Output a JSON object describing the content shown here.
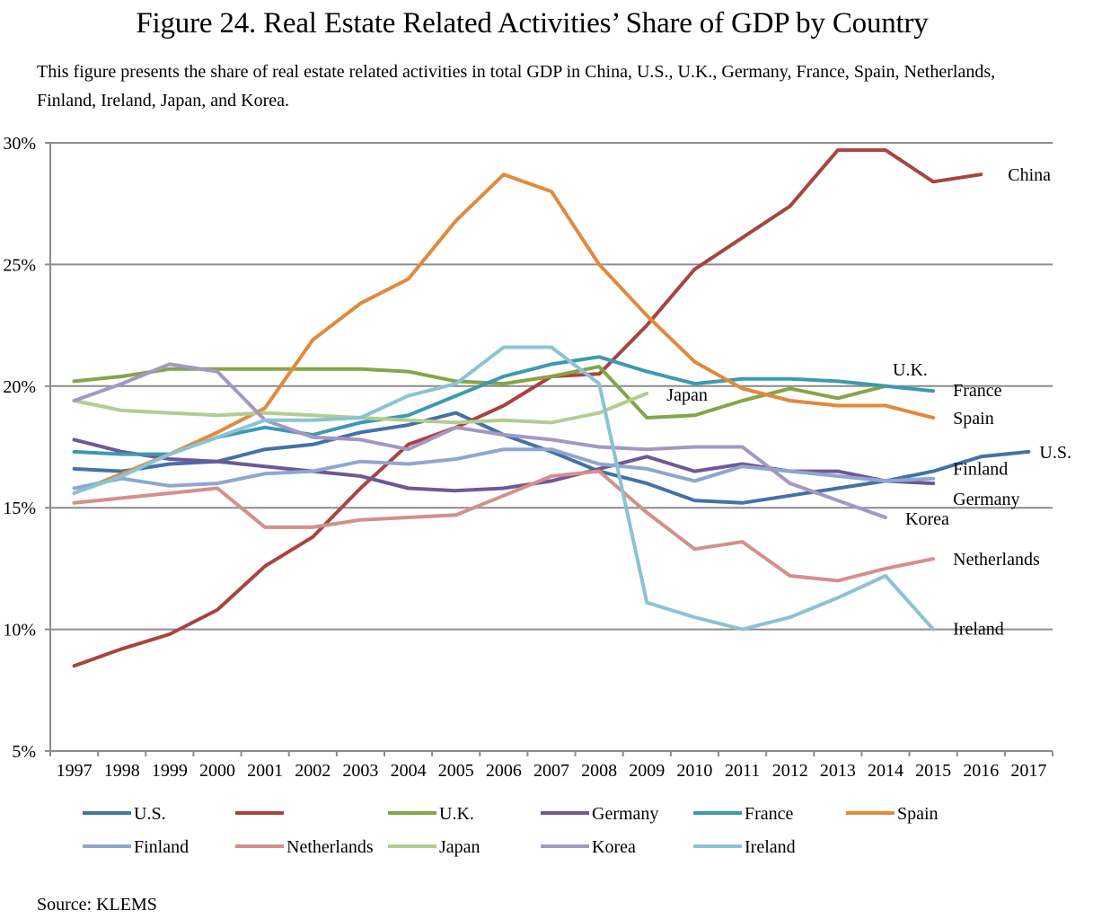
{
  "header": {
    "title": "Figure 24. Real Estate Related Activities’ Share of GDP by Country",
    "caption": "This figure presents the share of real estate related activities in total GDP in China, U.S., U.K., Germany, France, Spain, Netherlands, Finland, Ireland, Japan, and Korea."
  },
  "footer": {
    "source": "Source: KLEMS"
  },
  "chart_data": {
    "type": "line",
    "title": "Figure 24. Real Estate Related Activities’ Share of GDP by Country",
    "xlabel": "",
    "ylabel": "",
    "ylim": [
      5,
      30
    ],
    "y_ticks": [
      5,
      10,
      15,
      20,
      25,
      30
    ],
    "y_tick_labels": [
      "5%",
      "10%",
      "15%",
      "20%",
      "25%",
      "30%"
    ],
    "grid": "horizontal",
    "legend": "bottom",
    "categories": [
      "1997",
      "1998",
      "1999",
      "2000",
      "2001",
      "2002",
      "2003",
      "2004",
      "2005",
      "2006",
      "2007",
      "2008",
      "2009",
      "2010",
      "2011",
      "2012",
      "2013",
      "2014",
      "2015",
      "2016",
      "2017"
    ],
    "series": [
      {
        "name": "U.S.",
        "legend_label": "U.S.",
        "end_label": "U.S.",
        "color": "#4471a8",
        "values": [
          16.6,
          16.5,
          16.8,
          16.9,
          17.4,
          17.6,
          18.1,
          18.4,
          18.9,
          18.0,
          17.3,
          16.5,
          16.0,
          15.3,
          15.2,
          15.5,
          15.8,
          16.1,
          16.5,
          17.1,
          17.3
        ]
      },
      {
        "name": "China",
        "legend_label": "",
        "end_label": "China",
        "color": "#a84440",
        "values": [
          8.5,
          9.2,
          9.8,
          10.8,
          12.6,
          13.8,
          15.8,
          17.6,
          18.3,
          19.2,
          20.4,
          20.5,
          22.5,
          24.8,
          26.1,
          27.4,
          29.7,
          29.7,
          28.4,
          28.7,
          null
        ]
      },
      {
        "name": "U.K.",
        "legend_label": "U.K.",
        "end_label": "U.K.",
        "color": "#86a448",
        "values": [
          20.2,
          20.4,
          20.7,
          20.7,
          20.7,
          20.7,
          20.7,
          20.6,
          20.2,
          20.1,
          20.4,
          20.8,
          18.7,
          18.8,
          19.4,
          19.9,
          19.5,
          20.0,
          null,
          null,
          null
        ]
      },
      {
        "name": "Germany",
        "legend_label": "Germany",
        "end_label": "Germany",
        "color": "#6e5898",
        "values": [
          17.8,
          17.3,
          17.0,
          16.9,
          16.7,
          16.5,
          16.3,
          15.8,
          15.7,
          15.8,
          16.1,
          16.6,
          17.1,
          16.5,
          16.8,
          16.5,
          16.5,
          16.1,
          16.0,
          null,
          null
        ]
      },
      {
        "name": "France",
        "legend_label": "France",
        "end_label": "France",
        "color": "#3b9ab0",
        "values": [
          17.3,
          17.2,
          17.2,
          17.9,
          18.3,
          18.0,
          18.5,
          18.8,
          19.6,
          20.4,
          20.9,
          21.2,
          20.6,
          20.1,
          20.3,
          20.3,
          20.2,
          20.0,
          19.8,
          null,
          null
        ]
      },
      {
        "name": "Spain",
        "legend_label": "Spain",
        "end_label": "Spain",
        "color": "#e08a3c",
        "values": [
          15.6,
          16.4,
          17.2,
          18.1,
          19.1,
          21.9,
          23.4,
          24.4,
          26.8,
          28.7,
          28.0,
          25.0,
          22.9,
          21.0,
          19.9,
          19.4,
          19.2,
          19.2,
          18.7,
          null,
          null
        ]
      },
      {
        "name": "Finland",
        "legend_label": "Finland",
        "end_label": "Finland",
        "color": "#8ea7cf",
        "values": [
          15.8,
          16.2,
          15.9,
          16.0,
          16.4,
          16.5,
          16.9,
          16.8,
          17.0,
          17.4,
          17.4,
          16.8,
          16.6,
          16.1,
          16.7,
          16.5,
          16.3,
          16.1,
          16.2,
          null,
          null
        ]
      },
      {
        "name": "Netherlands",
        "legend_label": "Netherlands",
        "end_label": "Netherlands",
        "color": "#d48f8d",
        "values": [
          15.2,
          15.4,
          15.6,
          15.8,
          14.2,
          14.2,
          14.5,
          14.6,
          14.7,
          15.5,
          16.3,
          16.5,
          14.8,
          13.3,
          13.6,
          12.2,
          12.0,
          12.5,
          12.9,
          null,
          null
        ]
      },
      {
        "name": "Japan",
        "legend_label": "Japan",
        "end_label": "Japan",
        "color": "#b3cc92",
        "values": [
          19.4,
          19.0,
          18.9,
          18.8,
          18.9,
          18.8,
          18.7,
          18.6,
          18.5,
          18.6,
          18.5,
          18.9,
          19.7,
          null,
          null,
          null,
          null,
          null,
          null,
          null,
          null
        ]
      },
      {
        "name": "Korea",
        "legend_label": "Korea",
        "end_label": "Korea",
        "color": "#a497c4",
        "values": [
          19.4,
          20.1,
          20.9,
          20.6,
          18.6,
          17.9,
          17.8,
          17.4,
          18.3,
          18.0,
          17.8,
          17.5,
          17.4,
          17.5,
          17.5,
          16.0,
          15.3,
          14.6,
          null,
          null,
          null
        ]
      },
      {
        "name": "Ireland",
        "legend_label": "Ireland",
        "end_label": "Ireland",
        "color": "#8cc2d4",
        "values": [
          15.6,
          16.3,
          17.2,
          17.9,
          18.6,
          18.6,
          18.7,
          19.6,
          20.1,
          21.6,
          21.6,
          20.1,
          11.1,
          10.5,
          10.0,
          10.5,
          11.3,
          12.2,
          10.0,
          null,
          null
        ]
      }
    ]
  }
}
